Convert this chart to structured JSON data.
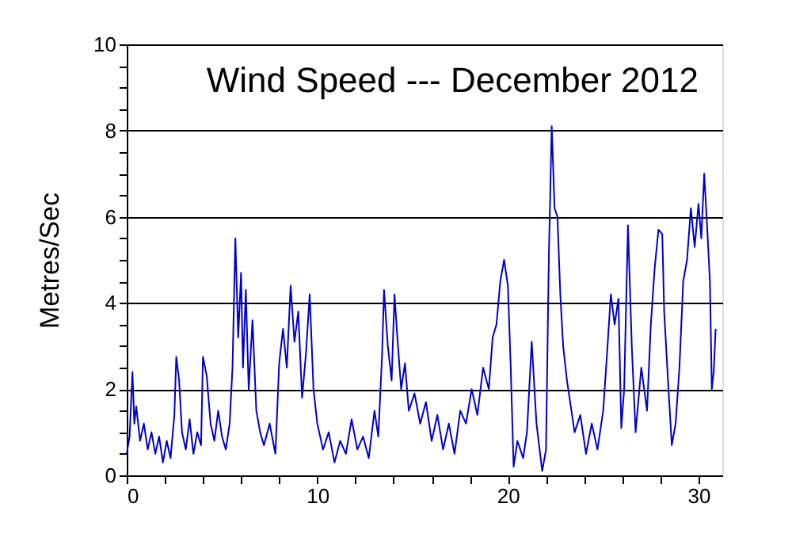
{
  "chart_data": {
    "type": "line",
    "title": "Wind Speed --- December 2012",
    "ylabel": "Metres/Sec",
    "x": [
      0,
      0.15,
      0.3,
      0.4,
      0.5,
      0.7,
      0.9,
      1.1,
      1.3,
      1.5,
      1.7,
      1.9,
      2.1,
      2.3,
      2.5,
      2.6,
      2.75,
      2.9,
      3.1,
      3.3,
      3.5,
      3.7,
      3.9,
      4.0,
      4.2,
      4.4,
      4.6,
      4.8,
      5.0,
      5.2,
      5.4,
      5.55,
      5.7,
      5.85,
      6.0,
      6.1,
      6.25,
      6.4,
      6.6,
      6.8,
      7.0,
      7.2,
      7.5,
      7.8,
      8.0,
      8.2,
      8.4,
      8.6,
      8.8,
      9.0,
      9.2,
      9.4,
      9.6,
      9.8,
      10.0,
      10.3,
      10.6,
      10.9,
      11.2,
      11.5,
      11.8,
      12.1,
      12.4,
      12.7,
      13.0,
      13.2,
      13.4,
      13.5,
      13.7,
      13.9,
      14.05,
      14.2,
      14.4,
      14.6,
      14.8,
      15.1,
      15.4,
      15.7,
      16.0,
      16.3,
      16.6,
      16.9,
      17.2,
      17.5,
      17.8,
      18.1,
      18.4,
      18.7,
      19.0,
      19.2,
      19.4,
      19.6,
      19.8,
      20.0,
      20.15,
      20.3,
      20.5,
      20.8,
      21.0,
      21.25,
      21.5,
      21.8,
      22.0,
      22.15,
      22.3,
      22.45,
      22.6,
      22.75,
      22.9,
      23.1,
      23.3,
      23.5,
      23.8,
      24.1,
      24.4,
      24.7,
      25.0,
      25.2,
      25.4,
      25.6,
      25.8,
      25.95,
      26.1,
      26.3,
      26.5,
      26.7,
      27.0,
      27.3,
      27.5,
      27.7,
      27.9,
      28.1,
      28.2,
      28.4,
      28.6,
      28.8,
      29.0,
      29.2,
      29.4,
      29.6,
      29.8,
      30.0,
      30.15,
      30.3,
      30.45,
      30.6,
      30.7,
      30.8,
      30.9
    ],
    "values": [
      0.5,
      0.9,
      2.4,
      1.2,
      1.6,
      0.8,
      1.2,
      0.6,
      1.0,
      0.5,
      0.9,
      0.3,
      0.8,
      0.4,
      1.4,
      2.75,
      2.2,
      1.0,
      0.6,
      1.3,
      0.5,
      1.0,
      0.7,
      2.75,
      2.3,
      1.2,
      0.8,
      1.5,
      0.9,
      0.6,
      1.2,
      2.5,
      5.5,
      3.2,
      4.7,
      2.5,
      4.3,
      2.0,
      3.6,
      1.5,
      1.0,
      0.7,
      1.2,
      0.5,
      2.6,
      3.4,
      2.5,
      4.4,
      3.1,
      3.8,
      1.8,
      2.8,
      4.2,
      2.0,
      1.2,
      0.6,
      1.0,
      0.3,
      0.8,
      0.5,
      1.3,
      0.6,
      0.9,
      0.4,
      1.5,
      0.9,
      2.8,
      4.3,
      3.0,
      2.2,
      4.2,
      3.2,
      2.0,
      2.6,
      1.5,
      1.9,
      1.2,
      1.7,
      0.8,
      1.4,
      0.6,
      1.2,
      0.5,
      1.5,
      1.2,
      2.0,
      1.4,
      2.5,
      2.0,
      3.2,
      3.5,
      4.5,
      5.0,
      4.4,
      2.5,
      0.2,
      0.8,
      0.4,
      1.0,
      3.1,
      1.2,
      0.1,
      0.6,
      5.1,
      8.1,
      6.2,
      6.0,
      4.2,
      3.0,
      2.2,
      1.6,
      1.0,
      1.4,
      0.5,
      1.2,
      0.6,
      1.5,
      2.8,
      4.2,
      3.5,
      4.1,
      1.1,
      2.0,
      5.8,
      3.0,
      1.0,
      2.5,
      1.5,
      3.5,
      4.8,
      5.7,
      5.6,
      3.8,
      2.2,
      0.7,
      1.2,
      2.5,
      4.5,
      5.0,
      6.2,
      5.3,
      6.3,
      5.5,
      7.0,
      5.8,
      4.5,
      2.0,
      2.4,
      3.4
    ],
    "color": "#0000cc",
    "xlim": [
      0,
      31.25
    ],
    "xticks": [
      0,
      {
        "value": 2,
        "label": null
      },
      {
        "value": 4,
        "label": null
      },
      {
        "value": 6,
        "label": null
      },
      {
        "value": 8,
        "label": null
      },
      10,
      {
        "value": 12,
        "label": null
      },
      {
        "value": 14,
        "label": null
      },
      {
        "value": 16,
        "label": null
      },
      {
        "value": 18,
        "label": null
      },
      20,
      {
        "value": 22,
        "label": null
      },
      {
        "value": 24,
        "label": null
      },
      {
        "value": 26,
        "label": null
      },
      {
        "value": 28,
        "label": null
      },
      30
    ],
    "ylim": [
      0,
      10
    ],
    "yticks": [
      0,
      {
        "value": 0.5,
        "label": null
      },
      {
        "value": 1,
        "label": null
      },
      {
        "value": 1.5,
        "label": null
      },
      2,
      {
        "value": 2.5,
        "label": null
      },
      {
        "value": 3,
        "label": null
      },
      {
        "value": 3.5,
        "label": null
      },
      4,
      {
        "value": 4.5,
        "label": null
      },
      {
        "value": 5,
        "label": null
      },
      {
        "value": 5.5,
        "label": null
      },
      6,
      {
        "value": 6.5,
        "label": null
      },
      {
        "value": 7,
        "label": null
      },
      {
        "value": 7.5,
        "label": null
      },
      8,
      {
        "value": 8.5,
        "label": null
      },
      {
        "value": 9,
        "label": null
      },
      {
        "value": 9.5,
        "label": null
      },
      10
    ],
    "grid": "y",
    "marker": "none",
    "line_style": "solid"
  }
}
